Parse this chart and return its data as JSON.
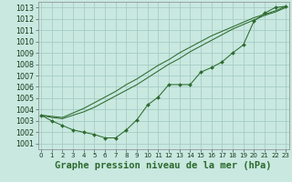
{
  "background_color": "#c8e8e0",
  "grid_color": "#a0c8c0",
  "line_color": "#2d6a2d",
  "xlabel": "Graphe pression niveau de la mer (hPa)",
  "ylim": [
    1000.5,
    1013.5
  ],
  "xlim": [
    -0.3,
    23.3
  ],
  "yticks": [
    1001,
    1002,
    1003,
    1004,
    1005,
    1006,
    1007,
    1008,
    1009,
    1010,
    1011,
    1012,
    1013
  ],
  "xticks": [
    0,
    1,
    2,
    3,
    4,
    5,
    6,
    7,
    8,
    9,
    10,
    11,
    12,
    13,
    14,
    15,
    16,
    17,
    18,
    19,
    20,
    21,
    22,
    23
  ],
  "line_marker": [
    1003.5,
    1003.0,
    1002.6,
    1002.2,
    1002.0,
    1001.8,
    1001.5,
    1001.5,
    1002.2,
    1003.1,
    1004.4,
    1005.1,
    1006.2,
    1006.2,
    1006.2,
    1007.3,
    1007.7,
    1008.2,
    1009.0,
    1009.7,
    1011.8,
    1012.5,
    1013.0,
    1013.1
  ],
  "line_smooth1": [
    1003.5,
    1003.3,
    1003.2,
    1003.5,
    1003.8,
    1004.2,
    1004.7,
    1005.2,
    1005.7,
    1006.2,
    1006.8,
    1007.4,
    1008.0,
    1008.5,
    1009.1,
    1009.6,
    1010.1,
    1010.6,
    1011.1,
    1011.5,
    1011.9,
    1012.3,
    1012.6,
    1013.0
  ],
  "line_smooth2": [
    1003.5,
    1003.4,
    1003.3,
    1003.7,
    1004.1,
    1004.6,
    1005.1,
    1005.6,
    1006.2,
    1006.7,
    1007.3,
    1007.9,
    1008.4,
    1009.0,
    1009.5,
    1010.0,
    1010.5,
    1010.9,
    1011.3,
    1011.7,
    1012.1,
    1012.4,
    1012.7,
    1013.1
  ],
  "xlabel_fontsize": 7.5,
  "ytick_fontsize": 5.8,
  "xtick_fontsize": 5.0
}
